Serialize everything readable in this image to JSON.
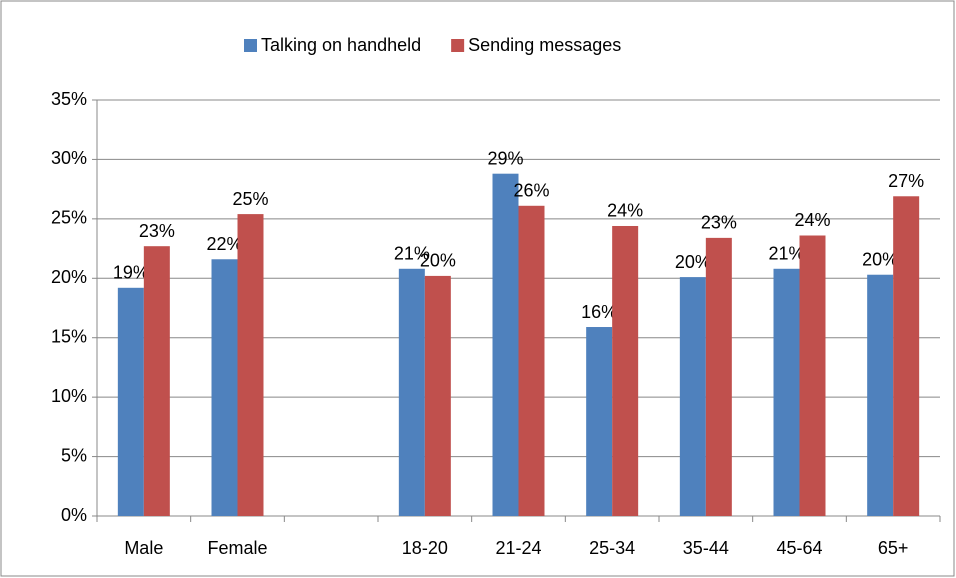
{
  "chart_data": {
    "type": "bar",
    "categories": [
      "Male",
      "Female",
      null,
      "18-20",
      "21-24",
      "25-34",
      "35-44",
      "45-64",
      "65+"
    ],
    "series": [
      {
        "name": "Talking on handheld",
        "color": "#4f81bd",
        "values": [
          19.2,
          21.6,
          null,
          20.8,
          28.8,
          15.9,
          20.1,
          20.8,
          20.3
        ],
        "value_labels": [
          "19%",
          "22%",
          null,
          "21%",
          "29%",
          "16%",
          "20%",
          "21%",
          "20%"
        ]
      },
      {
        "name": "Sending messages",
        "color": "#c0504d",
        "values": [
          22.7,
          25.4,
          null,
          20.2,
          26.1,
          24.4,
          23.4,
          23.6,
          26.9
        ],
        "value_labels": [
          "23%",
          "25%",
          null,
          "20%",
          "26%",
          "24%",
          "23%",
          "24%",
          "27%"
        ]
      }
    ],
    "ylim": [
      0,
      35
    ],
    "yticks": [
      {
        "value": 0,
        "label": "0%"
      },
      {
        "value": 5,
        "label": "5%"
      },
      {
        "value": 10,
        "label": "10%"
      },
      {
        "value": 15,
        "label": "15%"
      },
      {
        "value": 20,
        "label": "20%"
      },
      {
        "value": 25,
        "label": "25%"
      },
      {
        "value": 30,
        "label": "30%"
      },
      {
        "value": 35,
        "label": "35%"
      }
    ],
    "grid": true,
    "legend": "top"
  }
}
